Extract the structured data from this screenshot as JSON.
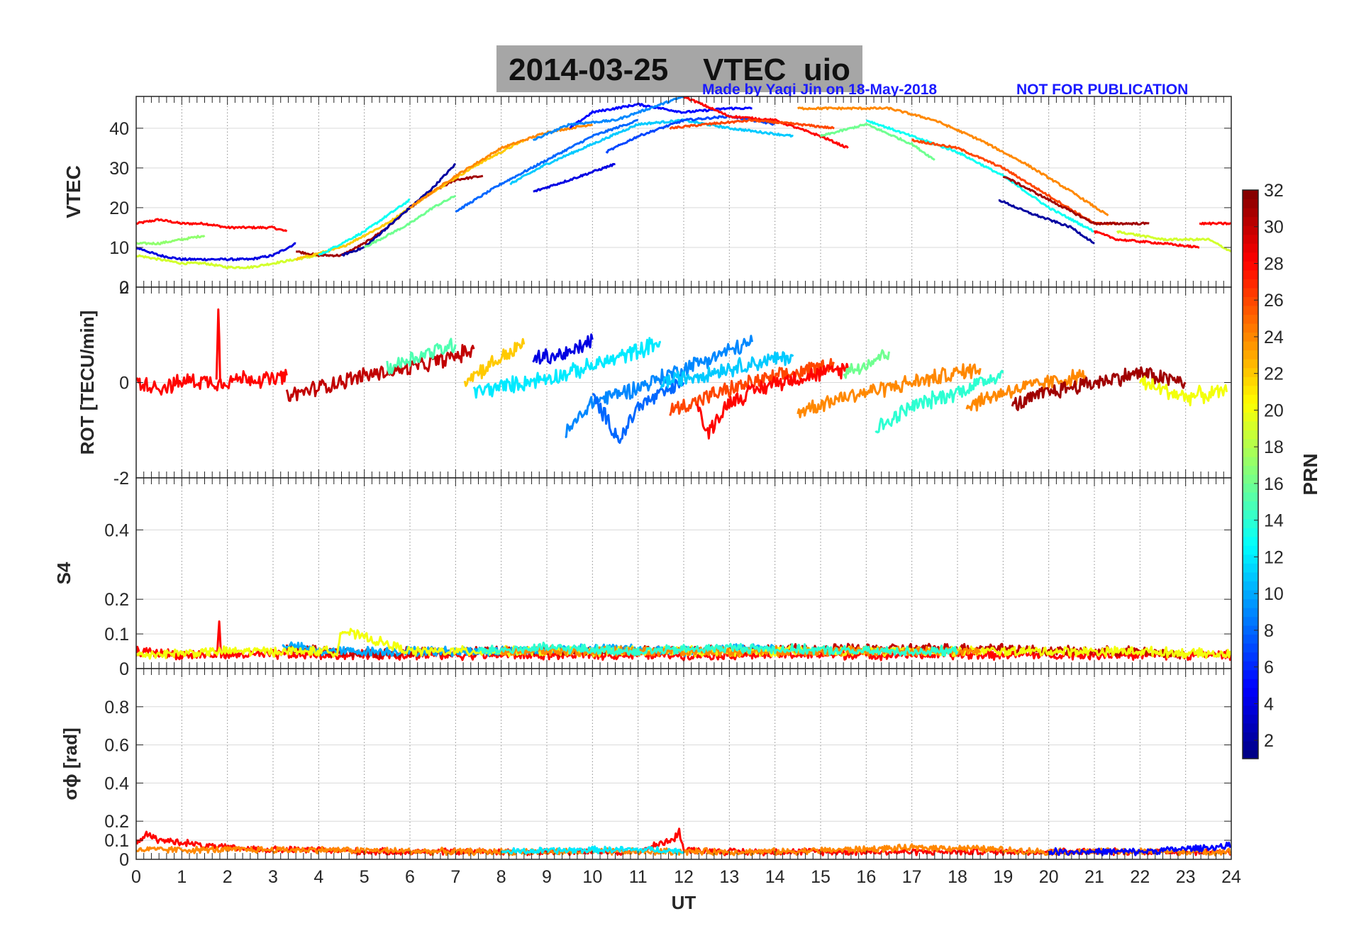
{
  "header": {
    "title": "2014-03-25    VTEC  uio",
    "made_by": "Made by Yaqi Jin on 18-May-2018",
    "notice": "NOT FOR PUBLICATION"
  },
  "colors": {
    "axes_background": "#ffffff",
    "grid": "#8c8c8c",
    "annotation": "#1a1aff",
    "title_box": "#a6a6a6"
  },
  "chart_data": [
    {
      "type": "line",
      "panel": "VTEC",
      "ylabel": "VTEC",
      "xlabel": "",
      "xlim": [
        0,
        24
      ],
      "ylim": [
        0,
        48
      ],
      "yticks": [
        0,
        10,
        20,
        30,
        40
      ],
      "series": [
        {
          "prn": 28,
          "x": [
            0,
            0.5,
            1,
            1.5,
            2,
            2.5,
            3,
            3.3
          ],
          "y": [
            16,
            17,
            16,
            16,
            15,
            15,
            15,
            14
          ]
        },
        {
          "prn": 4,
          "x": [
            0,
            0.5,
            1,
            1.5,
            2,
            2.5,
            3,
            3.5
          ],
          "y": [
            10,
            8,
            7,
            7,
            7,
            7,
            8,
            11
          ]
        },
        {
          "prn": 19,
          "x": [
            0,
            0.5,
            1,
            1.5,
            2,
            2.5,
            3,
            3.5,
            4
          ],
          "y": [
            8,
            7,
            6,
            6,
            5,
            5,
            6,
            7,
            8
          ]
        },
        {
          "prn": 17,
          "x": [
            0,
            0.5,
            1,
            1.5
          ],
          "y": [
            11,
            11,
            12,
            13
          ]
        },
        {
          "prn": 31,
          "x": [
            3.5,
            4,
            4.5,
            5,
            5.5,
            6,
            6.5,
            7,
            7.6
          ],
          "y": [
            9,
            8,
            8,
            11,
            15,
            20,
            24,
            27,
            28
          ]
        },
        {
          "prn": 22,
          "x": [
            3.5,
            4.5,
            5.5,
            6.5,
            7.5,
            8.5
          ],
          "y": [
            7,
            10,
            16,
            24,
            31,
            37
          ]
        },
        {
          "prn": 13,
          "x": [
            4,
            4.5,
            5,
            5.5,
            6
          ],
          "y": [
            8,
            11,
            14,
            18,
            22
          ]
        },
        {
          "prn": 2,
          "x": [
            4.5,
            5,
            5.5,
            6,
            6.5,
            7
          ],
          "y": [
            8,
            10,
            15,
            20,
            25,
            31
          ]
        },
        {
          "prn": 16,
          "x": [
            5,
            5.5,
            6,
            6.5,
            7
          ],
          "y": [
            10,
            13,
            16,
            20,
            23
          ]
        },
        {
          "prn": 24,
          "x": [
            6,
            7,
            8,
            9,
            10
          ],
          "y": [
            20,
            28,
            35,
            39,
            41
          ]
        },
        {
          "prn": 8,
          "x": [
            7,
            8,
            9,
            10,
            11
          ],
          "y": [
            19,
            26,
            32,
            38,
            42
          ]
        },
        {
          "prn": 11,
          "x": [
            8.2,
            9,
            10,
            11,
            12,
            13,
            14.4
          ],
          "y": [
            26,
            31,
            36,
            41,
            42,
            40,
            38
          ]
        },
        {
          "prn": 5,
          "x": [
            9.5,
            10,
            11,
            12,
            13,
            13.5
          ],
          "y": [
            40,
            44,
            46,
            44,
            45,
            45
          ]
        },
        {
          "prn": 9,
          "x": [
            8.7,
            9.5,
            10.5,
            11.5,
            12
          ],
          "y": [
            37,
            41,
            42,
            46,
            48
          ]
        },
        {
          "prn": 4,
          "x": [
            8.7,
            9.5,
            10.5
          ],
          "y": [
            24,
            27,
            31
          ]
        },
        {
          "prn": 7,
          "x": [
            10.3,
            11,
            12,
            13,
            14
          ],
          "y": [
            34,
            38,
            42,
            43,
            41
          ]
        },
        {
          "prn": 28,
          "x": [
            12,
            13,
            14,
            15,
            15.6
          ],
          "y": [
            48,
            43,
            42,
            38,
            35
          ]
        },
        {
          "prn": 26,
          "x": [
            11.7,
            12.5,
            13.5,
            14.5,
            15.3
          ],
          "y": [
            40,
            41,
            42,
            41,
            40
          ]
        },
        {
          "prn": 24,
          "x": [
            14.5,
            15.5,
            16.5,
            17.5,
            18.5,
            19.5,
            20.5,
            21.3
          ],
          "y": [
            45,
            45,
            45,
            42,
            37,
            31,
            24,
            18
          ]
        },
        {
          "prn": 16,
          "x": [
            15,
            16,
            17,
            17.5
          ],
          "y": [
            38,
            41,
            36,
            32
          ]
        },
        {
          "prn": 13,
          "x": [
            16,
            17,
            18,
            19,
            20,
            21
          ],
          "y": [
            42,
            38,
            34,
            28,
            20,
            14
          ]
        },
        {
          "prn": 26,
          "x": [
            17,
            18,
            19,
            20,
            21,
            21.5
          ],
          "y": [
            37,
            35,
            30,
            23,
            16,
            16
          ]
        },
        {
          "prn": 31,
          "x": [
            19,
            20,
            21,
            22.2
          ],
          "y": [
            28,
            22,
            16,
            16
          ]
        },
        {
          "prn": 2,
          "x": [
            18.9,
            19.5,
            20.5,
            21
          ],
          "y": [
            22,
            19,
            15,
            11
          ]
        },
        {
          "prn": 28,
          "x": [
            21,
            21.5,
            22.5,
            23.3
          ],
          "y": [
            14,
            12,
            11,
            10
          ]
        },
        {
          "prn": 19,
          "x": [
            21.5,
            22.5,
            23.5,
            24
          ],
          "y": [
            14,
            12,
            12,
            9
          ]
        },
        {
          "prn": 28,
          "x": [
            23.3,
            23.6,
            24
          ],
          "y": [
            16,
            16,
            16
          ]
        }
      ]
    },
    {
      "type": "line",
      "panel": "ROT",
      "ylabel": "ROT [TECU/min]",
      "xlabel": "",
      "xlim": [
        0,
        24
      ],
      "ylim": [
        -2,
        2
      ],
      "yticks": [
        -2,
        0,
        2
      ],
      "series": [
        {
          "prn": 28,
          "x": [
            0,
            0.6,
            1.2,
            1.8,
            2.4,
            3.0,
            3.3
          ],
          "y": [
            0.0,
            -0.1,
            0.05,
            0.0,
            0.1,
            0.05,
            0.15
          ]
        },
        {
          "prn": 28,
          "x": [
            1.76,
            1.8,
            1.84
          ],
          "y": [
            0.0,
            1.55,
            0.0
          ]
        },
        {
          "prn": 30,
          "x": [
            3.3,
            4,
            5,
            6,
            7,
            7.4
          ],
          "y": [
            -0.3,
            -0.1,
            0.15,
            0.3,
            0.55,
            0.7
          ]
        },
        {
          "prn": 15,
          "x": [
            5.5,
            6,
            7
          ],
          "y": [
            0.3,
            0.5,
            0.8
          ]
        },
        {
          "prn": 22,
          "x": [
            7.2,
            7.8,
            8.5
          ],
          "y": [
            0.05,
            0.4,
            0.8
          ]
        },
        {
          "prn": 4,
          "x": [
            8.7,
            9.5,
            10
          ],
          "y": [
            0.5,
            0.6,
            0.9
          ]
        },
        {
          "prn": 12,
          "x": [
            7.4,
            8.5,
            9.5,
            10.5,
            11.5
          ],
          "y": [
            -0.2,
            0.0,
            0.2,
            0.5,
            0.85
          ]
        },
        {
          "prn": 9,
          "x": [
            9.4,
            10,
            11,
            12,
            13.5
          ],
          "y": [
            -1.1,
            -0.4,
            -0.1,
            0.3,
            0.85
          ]
        },
        {
          "prn": 8,
          "x": [
            10,
            10.6,
            11,
            12
          ],
          "y": [
            -0.3,
            -1.2,
            -0.5,
            0.0
          ]
        },
        {
          "prn": 11,
          "x": [
            11.5,
            12.5,
            13.5,
            14.4
          ],
          "y": [
            0.0,
            0.2,
            0.4,
            0.55
          ]
        },
        {
          "prn": 26,
          "x": [
            11.7,
            12.5,
            13.5,
            14.5,
            15.3
          ],
          "y": [
            -0.6,
            -0.3,
            0.0,
            0.2,
            0.4
          ]
        },
        {
          "prn": 28,
          "x": [
            12.3,
            12.5,
            13,
            14,
            15.6
          ],
          "y": [
            -0.4,
            -1.1,
            -0.4,
            0.0,
            0.3
          ]
        },
        {
          "prn": 24,
          "x": [
            14.5,
            15.5,
            16.5,
            17.5,
            18.5
          ],
          "y": [
            -0.6,
            -0.3,
            -0.1,
            0.1,
            0.3
          ]
        },
        {
          "prn": 16,
          "x": [
            15.5,
            16,
            16.5
          ],
          "y": [
            0.2,
            0.4,
            0.65
          ]
        },
        {
          "prn": 14,
          "x": [
            16.2,
            17,
            18,
            19
          ],
          "y": [
            -1.0,
            -0.5,
            -0.2,
            0.2
          ]
        },
        {
          "prn": 24,
          "x": [
            18.2,
            19,
            20,
            20.8
          ],
          "y": [
            -0.5,
            -0.2,
            0.0,
            0.15
          ]
        },
        {
          "prn": 31,
          "x": [
            19.2,
            20,
            21,
            22,
            23
          ],
          "y": [
            -0.5,
            -0.2,
            0.0,
            0.2,
            0.0
          ]
        },
        {
          "prn": 20,
          "x": [
            22,
            23,
            23.9
          ],
          "y": [
            0.0,
            -0.3,
            -0.2
          ]
        }
      ]
    },
    {
      "type": "line",
      "panel": "S4",
      "ylabel": "S4",
      "xlabel": "",
      "xlim": [
        0,
        24
      ],
      "ylim": [
        0,
        0.55
      ],
      "yticks": [
        0,
        0.1,
        0.2,
        0.4
      ],
      "series": [
        {
          "prn": 28,
          "x": [
            0,
            1,
            1.78,
            1.82,
            1.86,
            3,
            5,
            7,
            9,
            11,
            13,
            15,
            17,
            19,
            21,
            23,
            24
          ],
          "y": [
            0.05,
            0.04,
            0.04,
            0.14,
            0.04,
            0.04,
            0.04,
            0.04,
            0.04,
            0.04,
            0.04,
            0.04,
            0.04,
            0.04,
            0.04,
            0.04,
            0.04
          ]
        },
        {
          "prn": 30,
          "x": [
            3.3,
            4,
            5,
            6,
            7,
            19,
            20,
            21,
            22,
            23
          ],
          "y": [
            0.06,
            0.05,
            0.04,
            0.05,
            0.05,
            0.06,
            0.05,
            0.05,
            0.05,
            0.04
          ]
        },
        {
          "prn": 10,
          "x": [
            3.2,
            4,
            8,
            10,
            12,
            14
          ],
          "y": [
            0.07,
            0.05,
            0.05,
            0.06,
            0.05,
            0.06
          ]
        },
        {
          "prn": 20,
          "x": [
            0,
            2,
            4.4,
            4.5,
            6,
            22,
            24
          ],
          "y": [
            0.04,
            0.05,
            0.05,
            0.11,
            0.05,
            0.05,
            0.04
          ]
        },
        {
          "prn": 24,
          "x": [
            8,
            10,
            15,
            17,
            18.5
          ],
          "y": [
            0.05,
            0.05,
            0.05,
            0.05,
            0.05
          ]
        },
        {
          "prn": 14,
          "x": [
            7.5,
            9,
            11,
            13,
            16,
            18
          ],
          "y": [
            0.05,
            0.06,
            0.05,
            0.06,
            0.05,
            0.05
          ]
        }
      ]
    },
    {
      "type": "line",
      "panel": "sigma_phi",
      "ylabel": "σϕ [rad]",
      "xlabel": "UT",
      "xlim": [
        0,
        24
      ],
      "ylim": [
        0,
        1
      ],
      "yticks": [
        0,
        0.1,
        0.2,
        0.4,
        0.6,
        0.8
      ],
      "xticks": [
        "0",
        "1",
        "2",
        "3",
        "4",
        "5",
        "6",
        "7",
        "8",
        "9",
        "10",
        "11",
        "12",
        "13",
        "14",
        "15",
        "16",
        "17",
        "18",
        "19",
        "20",
        "21",
        "22",
        "23",
        "24"
      ],
      "series": [
        {
          "prn": 28,
          "x": [
            0,
            0.2,
            0.5,
            1,
            1.5,
            2,
            3,
            4,
            5,
            8,
            11,
            11.8,
            11.9,
            12,
            13,
            16,
            20,
            24
          ],
          "y": [
            0.09,
            0.13,
            0.1,
            0.09,
            0.07,
            0.06,
            0.05,
            0.05,
            0.04,
            0.04,
            0.04,
            0.11,
            0.15,
            0.05,
            0.04,
            0.04,
            0.04,
            0.04
          ]
        },
        {
          "prn": 24,
          "x": [
            0,
            2,
            4,
            7,
            10,
            14,
            17,
            18,
            20,
            24
          ],
          "y": [
            0.05,
            0.05,
            0.05,
            0.04,
            0.04,
            0.04,
            0.06,
            0.06,
            0.04,
            0.04
          ]
        },
        {
          "prn": 12,
          "x": [
            8,
            10,
            11.5,
            12
          ],
          "y": [
            0.04,
            0.05,
            0.05,
            0.04
          ]
        },
        {
          "prn": 5,
          "x": [
            20,
            22,
            24
          ],
          "y": [
            0.04,
            0.04,
            0.07
          ]
        }
      ]
    }
  ],
  "colorbar": {
    "label": "PRN",
    "min": 1,
    "max": 32,
    "ticks": [
      "2",
      "4",
      "6",
      "8",
      "10",
      "12",
      "14",
      "16",
      "18",
      "20",
      "22",
      "24",
      "26",
      "28",
      "30",
      "32"
    ],
    "ticks_values": [
      2,
      4,
      6,
      8,
      10,
      12,
      14,
      16,
      18,
      20,
      22,
      24,
      26,
      28,
      30,
      32
    ]
  }
}
